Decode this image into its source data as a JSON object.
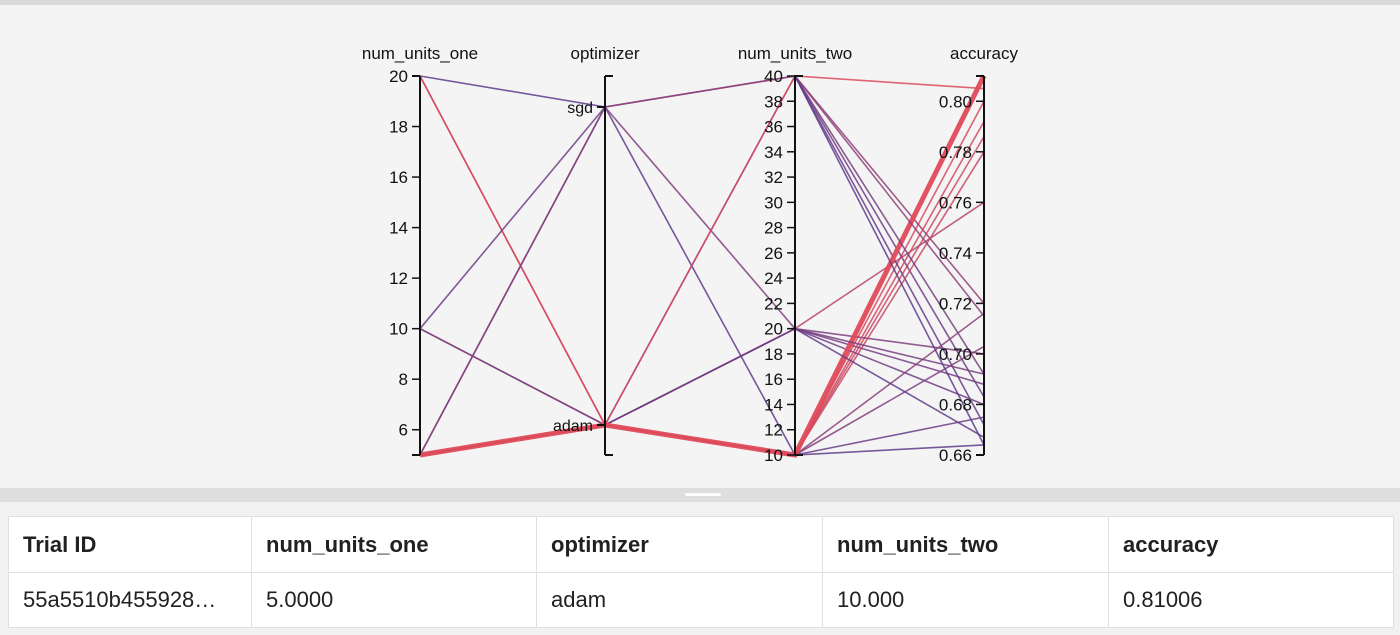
{
  "chart_data": {
    "type": "parallel_coordinates",
    "axes": [
      {
        "name": "num_units_one",
        "kind": "numeric",
        "range": [
          5,
          20
        ],
        "ticks": [
          6,
          8,
          10,
          12,
          14,
          16,
          18,
          20
        ]
      },
      {
        "name": "optimizer",
        "kind": "categorical",
        "categories": [
          "sgd",
          "adam"
        ]
      },
      {
        "name": "num_units_two",
        "kind": "numeric",
        "range": [
          10,
          40
        ],
        "ticks": [
          10,
          12,
          14,
          16,
          18,
          20,
          22,
          24,
          26,
          28,
          30,
          32,
          34,
          36,
          38,
          40
        ]
      },
      {
        "name": "accuracy",
        "kind": "numeric",
        "range": [
          0.66,
          0.81
        ],
        "ticks": [
          0.66,
          0.68,
          0.7,
          0.72,
          0.74,
          0.76,
          0.78,
          0.8
        ]
      }
    ],
    "color_scale": {
      "low": "#5b3b8c",
      "high": "#e04a5a"
    },
    "trials": [
      {
        "num_units_one": 5,
        "optimizer": "adam",
        "num_units_two": 10,
        "accuracy": 0.81006,
        "selected": true
      },
      {
        "num_units_one": 20,
        "optimizer": "sgd",
        "num_units_two": 10,
        "accuracy": 0.664
      },
      {
        "num_units_one": 20,
        "optimizer": "adam",
        "num_units_two": 10,
        "accuracy": 0.786
      },
      {
        "num_units_one": 20,
        "optimizer": "adam",
        "num_units_two": 10,
        "accuracy": 0.8
      },
      {
        "num_units_one": 10,
        "optimizer": "sgd",
        "num_units_two": 40,
        "accuracy": 0.683
      },
      {
        "num_units_one": 10,
        "optimizer": "adam",
        "num_units_two": 20,
        "accuracy": 0.76
      },
      {
        "num_units_one": 10,
        "optimizer": "adam",
        "num_units_two": 20,
        "accuracy": 0.688
      },
      {
        "num_units_one": 5,
        "optimizer": "sgd",
        "num_units_two": 40,
        "accuracy": 0.72
      },
      {
        "num_units_one": 5,
        "optimizer": "sgd",
        "num_units_two": 20,
        "accuracy": 0.7
      },
      {
        "num_units_one": 5,
        "optimizer": "adam",
        "num_units_two": 40,
        "accuracy": 0.672
      },
      {
        "num_units_one": 5,
        "optimizer": "adam",
        "num_units_two": 40,
        "accuracy": 0.805
      },
      {
        "num_units_one": 5,
        "optimizer": "adam",
        "num_units_two": 20,
        "accuracy": 0.68
      },
      {
        "num_units_one": 5,
        "optimizer": "adam",
        "num_units_two": 10,
        "accuracy": 0.792
      },
      {
        "num_units_one": 5,
        "optimizer": "adam",
        "num_units_two": 10,
        "accuracy": 0.78
      },
      {
        "num_units_one": 5,
        "optimizer": "adam",
        "num_units_two": 10,
        "accuracy": 0.703
      },
      {
        "num_units_one": 5,
        "optimizer": "adam",
        "num_units_two": 10,
        "accuracy": 0.716
      }
    ],
    "extra_edges_units_two_to_accuracy": [
      {
        "num_units_two": 40,
        "accuracy": 0.692
      },
      {
        "num_units_two": 40,
        "accuracy": 0.715
      },
      {
        "num_units_two": 40,
        "accuracy": 0.664
      },
      {
        "num_units_two": 20,
        "accuracy": 0.692
      },
      {
        "num_units_two": 20,
        "accuracy": 0.667
      },
      {
        "num_units_two": 10,
        "accuracy": 0.675
      }
    ]
  },
  "table": {
    "columns": [
      "Trial ID",
      "num_units_one",
      "optimizer",
      "num_units_two",
      "accuracy"
    ],
    "rows": [
      [
        "55a5510b455928…",
        "5.0000",
        "adam",
        "10.000",
        "0.81006"
      ]
    ]
  }
}
